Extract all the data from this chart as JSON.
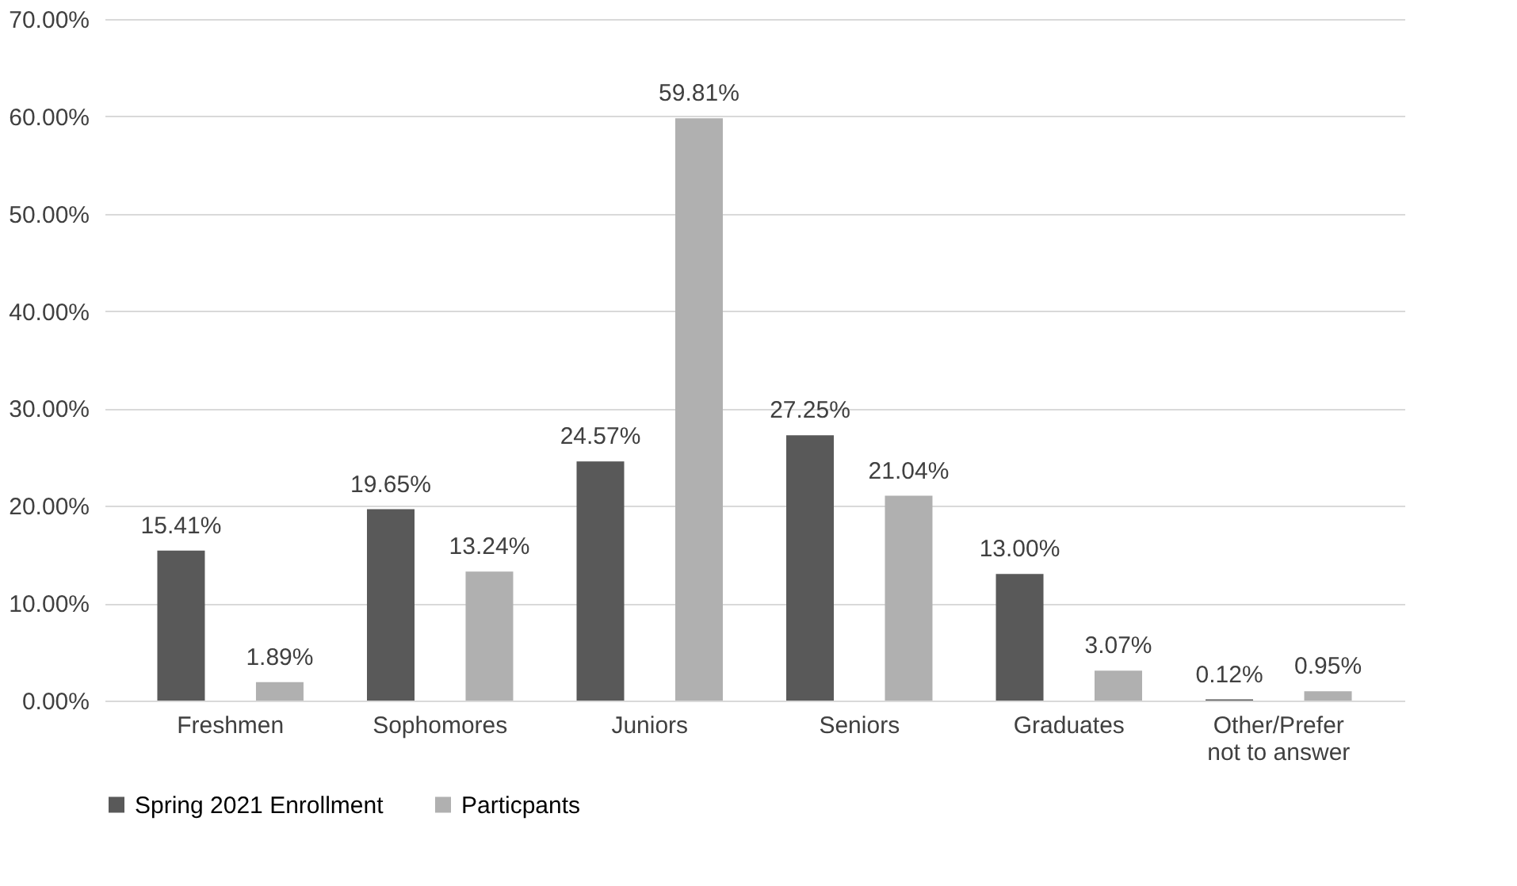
{
  "chart_data": {
    "type": "bar",
    "categories": [
      "Freshmen",
      "Sophomores",
      "Juniors",
      "Seniors",
      "Graduates",
      "Other/Prefer not to answer"
    ],
    "series": [
      {
        "name": "Spring 2021 Enrollment",
        "color": "#595959",
        "values": [
          15.41,
          19.65,
          24.57,
          27.25,
          13.0,
          0.12
        ],
        "value_labels": [
          "15.41%",
          "19.65%",
          "24.57%",
          "27.25%",
          "13.00%",
          "0.12%"
        ]
      },
      {
        "name": "Particpants",
        "color": "#b0b0b0",
        "values": [
          1.89,
          13.24,
          59.81,
          21.04,
          3.07,
          0.95
        ],
        "value_labels": [
          "1.89%",
          "13.24%",
          "59.81%",
          "21.04%",
          "3.07%",
          "0.95%"
        ]
      }
    ],
    "ylim": [
      0,
      70
    ],
    "yticks": [
      {
        "value": 0,
        "label": "0.00%"
      },
      {
        "value": 10,
        "label": "10.00%"
      },
      {
        "value": 20,
        "label": "20.00%"
      },
      {
        "value": 30,
        "label": "30.00%"
      },
      {
        "value": 40,
        "label": "40.00%"
      },
      {
        "value": 50,
        "label": "50.00%"
      },
      {
        "value": 60,
        "label": "60.00%"
      },
      {
        "value": 70,
        "label": "70.00%"
      }
    ],
    "grid": "y",
    "legend": "bottom"
  }
}
